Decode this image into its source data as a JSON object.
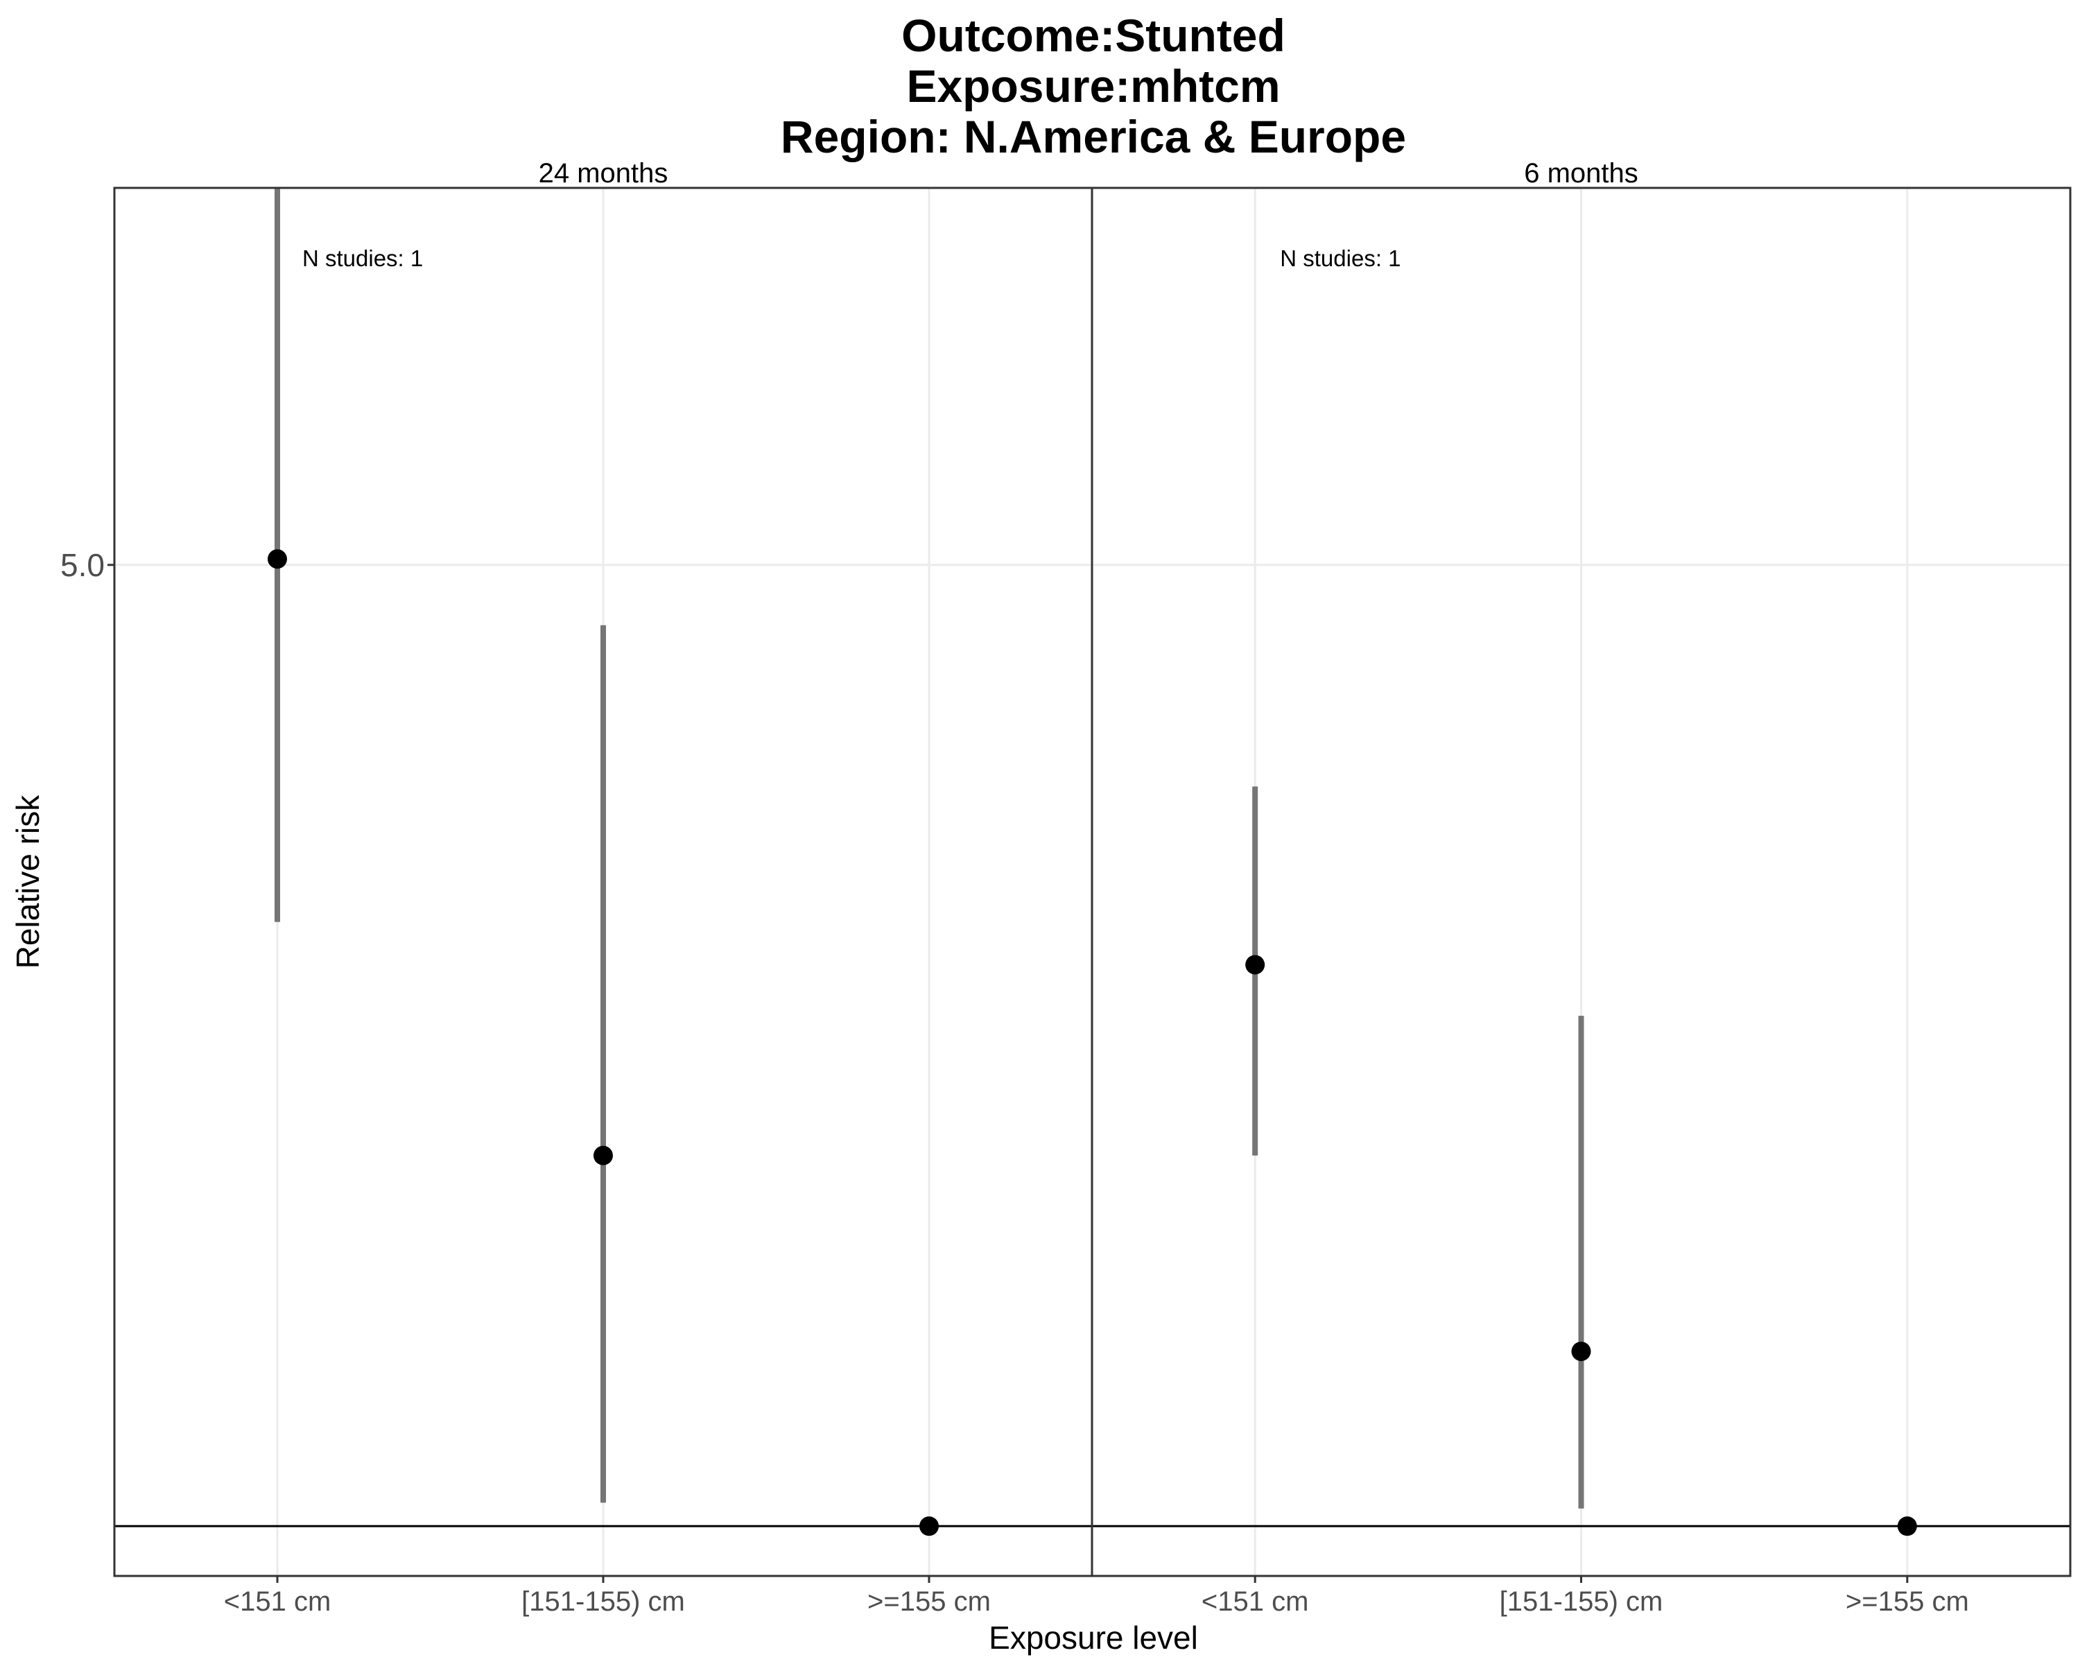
{
  "chart_data": {
    "type": "scatter",
    "subtype": "point-range (facetted)",
    "title_lines": [
      "Outcome:Stunted",
      "Exposure:mhtcm",
      "Region: N.America & Europe"
    ],
    "xlabel": "Exposure level",
    "ylabel": "Relative risk",
    "y_scale": "log",
    "y_ticks": [
      {
        "value": 5.0,
        "label": "5.0"
      }
    ],
    "ylim": [
      0.92,
      9.4
    ],
    "reference_line": 1,
    "grid": true,
    "categories": [
      "<151 cm",
      "[151-155) cm",
      ">=155 cm"
    ],
    "facets": [
      {
        "label": "24 months",
        "annotation": "N studies: 1",
        "points": [
          {
            "category": "<151 cm",
            "estimate": 5.05,
            "ci_lower": 2.75,
            "ci_upper": 9.4
          },
          {
            "category": "[151-155) cm",
            "estimate": 1.86,
            "ci_lower": 1.04,
            "ci_upper": 4.52
          },
          {
            "category": ">=155 cm",
            "estimate": 1.0,
            "ci_lower": null,
            "ci_upper": null
          }
        ]
      },
      {
        "label": "6 months",
        "annotation": "N studies: 1",
        "points": [
          {
            "category": "<151 cm",
            "estimate": 2.56,
            "ci_lower": 1.86,
            "ci_upper": 3.45
          },
          {
            "category": "[151-155) cm",
            "estimate": 1.34,
            "ci_lower": 1.03,
            "ci_upper": 2.35
          },
          {
            "category": ">=155 cm",
            "estimate": 1.0,
            "ci_lower": null,
            "ci_upper": null
          }
        ]
      }
    ]
  }
}
